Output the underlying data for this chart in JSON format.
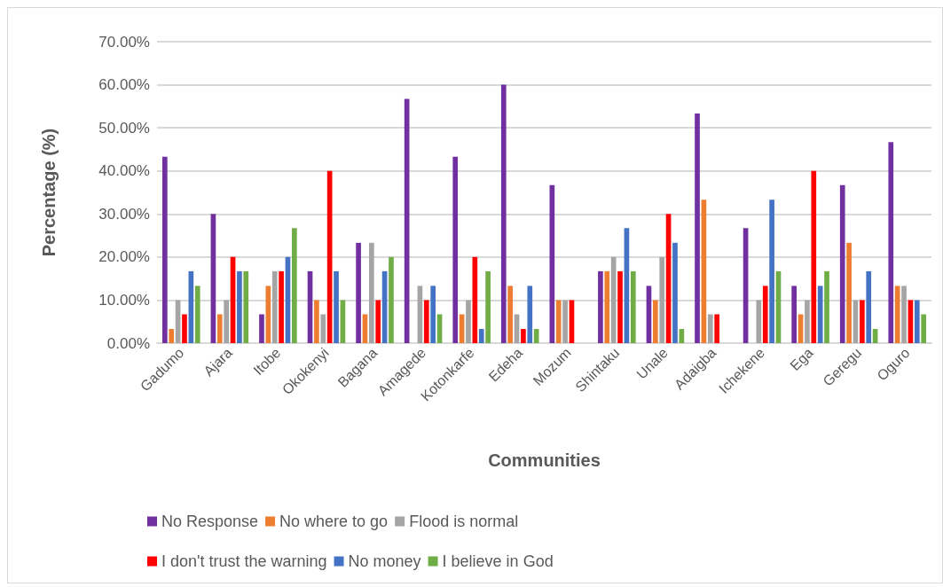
{
  "chart_data": {
    "type": "bar",
    "xlabel": "Communities",
    "ylabel": "Percentage (%)",
    "categories": [
      "Gadumo",
      "Ajara",
      "Itobe",
      "Okokenyi",
      "Bagana",
      "Amagede",
      "Kotonkarfe",
      "Edeha",
      "Mozum",
      "Shintaku",
      "Unale",
      "Adaigba",
      "Ichekene",
      "Ega",
      "Geregu",
      "Oguro"
    ],
    "series": [
      {
        "name": "No Response",
        "color": "#7030a0",
        "values": [
          43.3,
          30,
          6.7,
          16.7,
          23.3,
          56.7,
          43.3,
          60,
          36.7,
          16.7,
          13.3,
          53.3,
          26.7,
          13.3,
          36.7,
          46.7
        ]
      },
      {
        "name": "No where to go",
        "color": "#ed7d31",
        "values": [
          3.3,
          6.7,
          13.3,
          10,
          6.7,
          0,
          6.7,
          13.3,
          10,
          16.7,
          10,
          33.3,
          0,
          6.7,
          23.3,
          13.3
        ]
      },
      {
        "name": "Flood is normal",
        "color": "#a5a5a5",
        "values": [
          10,
          10,
          16.7,
          6.7,
          23.3,
          13.3,
          10,
          6.7,
          10,
          20,
          20,
          6.7,
          10,
          10,
          10,
          13.3
        ]
      },
      {
        "name": "I don't trust the warning",
        "color": "#ff0000",
        "values": [
          6.7,
          20,
          16.7,
          40,
          10,
          10,
          20,
          3.3,
          10,
          16.7,
          30,
          6.7,
          13.3,
          40,
          10,
          10
        ]
      },
      {
        "name": "No money",
        "color": "#4472c4",
        "values": [
          16.7,
          16.7,
          20,
          16.7,
          16.7,
          13.3,
          3.3,
          13.3,
          0,
          26.7,
          23.3,
          0,
          33.3,
          13.3,
          16.7,
          10
        ]
      },
      {
        "name": "I believe in God",
        "color": "#70ad47",
        "values": [
          13.3,
          16.7,
          26.7,
          10,
          20,
          6.7,
          16.7,
          3.3,
          0,
          16.7,
          3.3,
          0,
          16.7,
          16.7,
          3.3,
          6.7
        ]
      }
    ],
    "ylim": [
      0,
      70
    ],
    "yticks": [
      {
        "value": 0,
        "label": "0.00%"
      },
      {
        "value": 10,
        "label": "10.00%"
      },
      {
        "value": 20,
        "label": "20.00%"
      },
      {
        "value": 30,
        "label": "30.00%"
      },
      {
        "value": 40,
        "label": "40.00%"
      },
      {
        "value": 50,
        "label": "50.00%"
      },
      {
        "value": 60,
        "label": "60.00%"
      },
      {
        "value": 70,
        "label": "70.00%"
      }
    ],
    "grid": "y",
    "legend": "bottom"
  }
}
